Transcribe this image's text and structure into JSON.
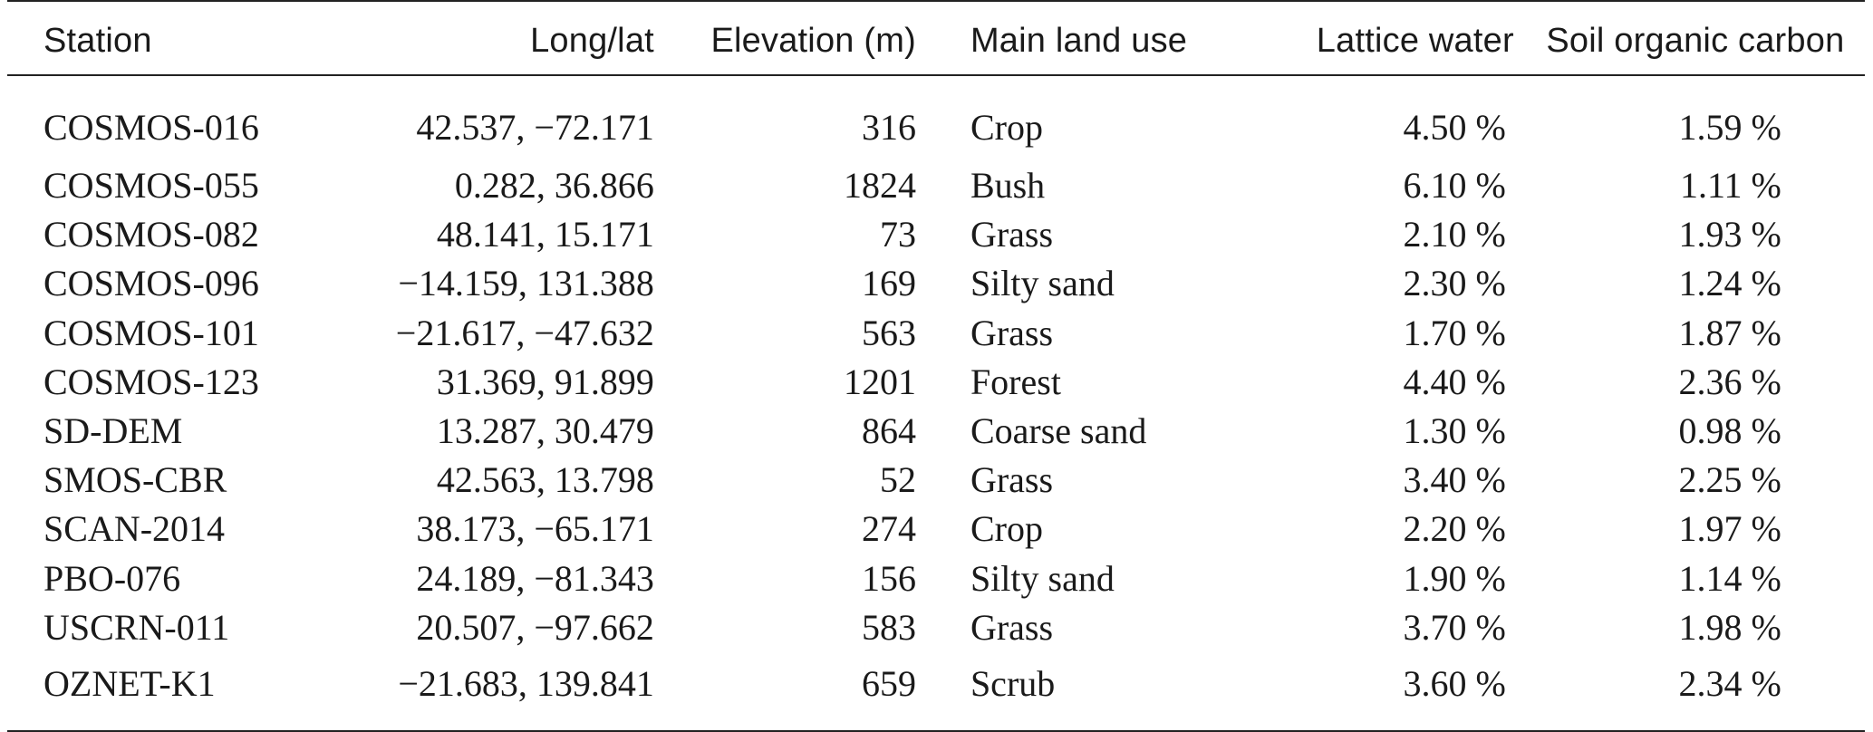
{
  "table": {
    "headers": {
      "station": "Station",
      "longlat": "Long/lat",
      "elevation": "Elevation (m)",
      "land_use": "Main land use",
      "lattice_water": "Lattice water",
      "soc": "Soil organic carbon"
    },
    "rows": [
      {
        "station": "COSMOS-016",
        "longlat": "42.537, −72.171",
        "elevation": "316",
        "land_use": "Crop",
        "lattice_water": "4.50 %",
        "soc": "1.59 %"
      },
      {
        "station": "COSMOS-055",
        "longlat": "0.282, 36.866",
        "elevation": "1824",
        "land_use": "Bush",
        "lattice_water": "6.10 %",
        "soc": "1.11 %"
      },
      {
        "station": "COSMOS-082",
        "longlat": "48.141, 15.171",
        "elevation": "73",
        "land_use": "Grass",
        "lattice_water": "2.10 %",
        "soc": "1.93 %"
      },
      {
        "station": "COSMOS-096",
        "longlat": "−14.159, 131.388",
        "elevation": "169",
        "land_use": "Silty sand",
        "lattice_water": "2.30 %",
        "soc": "1.24 %"
      },
      {
        "station": "COSMOS-101",
        "longlat": "−21.617, −47.632",
        "elevation": "563",
        "land_use": "Grass",
        "lattice_water": "1.70 %",
        "soc": "1.87 %"
      },
      {
        "station": "COSMOS-123",
        "longlat": "31.369, 91.899",
        "elevation": "1201",
        "land_use": "Forest",
        "lattice_water": "4.40 %",
        "soc": "2.36 %"
      },
      {
        "station": "SD-DEM",
        "longlat": "13.287, 30.479",
        "elevation": "864",
        "land_use": "Coarse sand",
        "lattice_water": "1.30 %",
        "soc": "0.98 %"
      },
      {
        "station": "SMOS-CBR",
        "longlat": "42.563, 13.798",
        "elevation": "52",
        "land_use": "Grass",
        "lattice_water": "3.40 %",
        "soc": "2.25 %"
      },
      {
        "station": "SCAN-2014",
        "longlat": "38.173, −65.171",
        "elevation": "274",
        "land_use": "Crop",
        "lattice_water": "2.20 %",
        "soc": "1.97 %"
      },
      {
        "station": "PBO-076",
        "longlat": "24.189, −81.343",
        "elevation": "156",
        "land_use": "Silty sand",
        "lattice_water": "1.90 %",
        "soc": "1.14 %"
      },
      {
        "station": "USCRN-011",
        "longlat": "20.507, −97.662",
        "elevation": "583",
        "land_use": "Grass",
        "lattice_water": "3.70 %",
        "soc": "1.98 %"
      },
      {
        "station": "OZNET-K1",
        "longlat": "−21.683, 139.841",
        "elevation": "659",
        "land_use": "Scrub",
        "lattice_water": "3.60 %",
        "soc": "2.34 %"
      }
    ]
  }
}
